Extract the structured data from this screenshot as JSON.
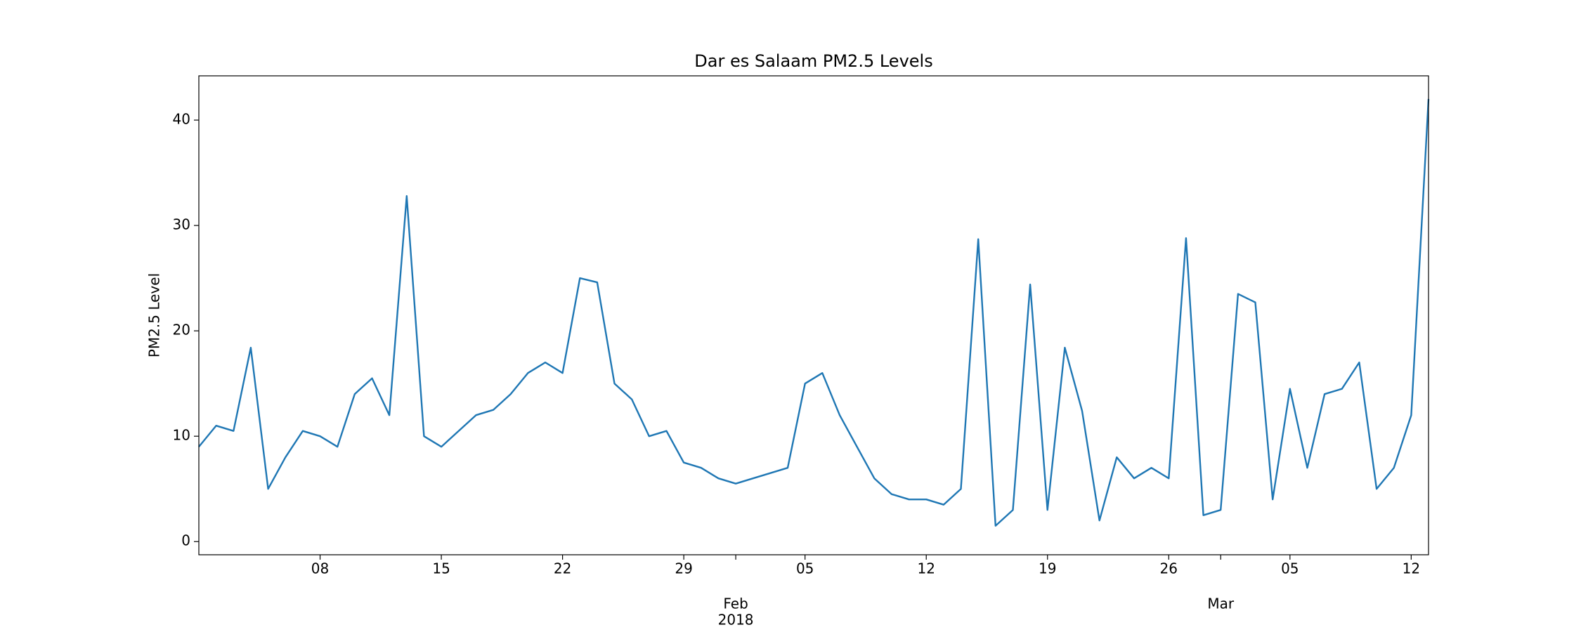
{
  "chart_data": {
    "type": "line",
    "title": "Dar es Salaam PM2.5 Levels",
    "ylabel": "PM2.5 Level",
    "x_year": "2018",
    "x": [
      "2018-01-01",
      "2018-01-02",
      "2018-01-03",
      "2018-01-04",
      "2018-01-05",
      "2018-01-06",
      "2018-01-07",
      "2018-01-08",
      "2018-01-09",
      "2018-01-10",
      "2018-01-11",
      "2018-01-12",
      "2018-01-13",
      "2018-01-14",
      "2018-01-15",
      "2018-01-16",
      "2018-01-17",
      "2018-01-18",
      "2018-01-19",
      "2018-01-20",
      "2018-01-21",
      "2018-01-22",
      "2018-01-23",
      "2018-01-24",
      "2018-01-25",
      "2018-01-26",
      "2018-01-27",
      "2018-01-28",
      "2018-01-29",
      "2018-01-30",
      "2018-01-31",
      "2018-02-01",
      "2018-02-02",
      "2018-02-03",
      "2018-02-04",
      "2018-02-05",
      "2018-02-06",
      "2018-02-07",
      "2018-02-08",
      "2018-02-09",
      "2018-02-10",
      "2018-02-11",
      "2018-02-12",
      "2018-02-13",
      "2018-02-14",
      "2018-02-15",
      "2018-02-16",
      "2018-02-17",
      "2018-02-18",
      "2018-02-19",
      "2018-02-20",
      "2018-02-21",
      "2018-02-22",
      "2018-02-23",
      "2018-02-24",
      "2018-02-25",
      "2018-02-26",
      "2018-02-27",
      "2018-02-28",
      "2018-03-01",
      "2018-03-02",
      "2018-03-03",
      "2018-03-04",
      "2018-03-05",
      "2018-03-06",
      "2018-03-07",
      "2018-03-08",
      "2018-03-09",
      "2018-03-10",
      "2018-03-11",
      "2018-03-12",
      "2018-03-13"
    ],
    "series": [
      {
        "name": "PM2.5",
        "color": "#1f77b4",
        "values": [
          9,
          11,
          10.5,
          18.4,
          5,
          8,
          10.5,
          10,
          9,
          14,
          15.5,
          12,
          32.8,
          10,
          9,
          10.5,
          12,
          12.5,
          14,
          16,
          17,
          16,
          25,
          24.6,
          15,
          13.5,
          10,
          10.5,
          7.5,
          7,
          6,
          5.5,
          6,
          6.5,
          7,
          15,
          16,
          12,
          9,
          6,
          4.5,
          4,
          4,
          3.5,
          5,
          28.7,
          1.5,
          3,
          24.4,
          3,
          18.4,
          12.4,
          2,
          8,
          6,
          7,
          6,
          28.8,
          2.5,
          3,
          23.5,
          22.7,
          4,
          14.5,
          7,
          14,
          14.5,
          17,
          5,
          7,
          12,
          42
        ]
      }
    ],
    "xlim": [
      "2018-01-01",
      "2018-03-13"
    ],
    "xticks": [
      {
        "value": "2018-01-08",
        "label": "08"
      },
      {
        "value": "2018-01-15",
        "label": "15"
      },
      {
        "value": "2018-01-22",
        "label": "22"
      },
      {
        "value": "2018-01-29",
        "label": "29"
      },
      {
        "value": "2018-02-01",
        "label": "Feb"
      },
      {
        "value": "2018-02-05",
        "label": "05"
      },
      {
        "value": "2018-02-12",
        "label": "12"
      },
      {
        "value": "2018-02-19",
        "label": "19"
      },
      {
        "value": "2018-02-26",
        "label": "26"
      },
      {
        "value": "2018-03-01",
        "label": "Mar"
      },
      {
        "value": "2018-03-05",
        "label": "05"
      },
      {
        "value": "2018-03-12",
        "label": "12"
      }
    ],
    "ylim": [
      -1.25,
      44.2
    ],
    "yticks": [
      0,
      10,
      20,
      30,
      40
    ],
    "grid": false
  }
}
